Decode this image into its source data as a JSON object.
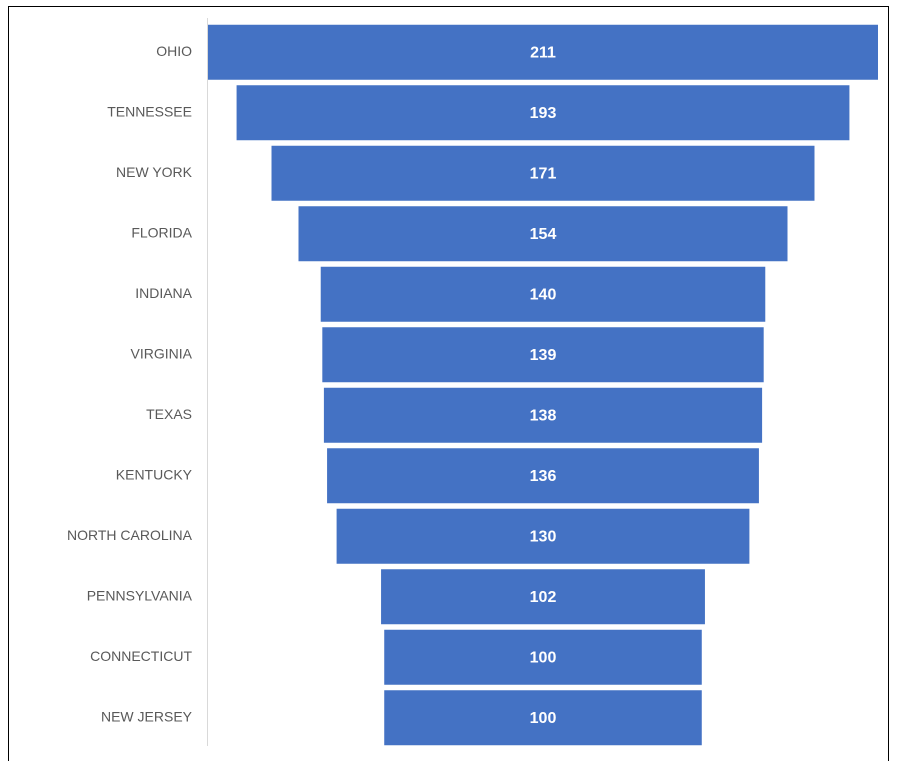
{
  "chart_data": {
    "type": "funnel",
    "categories": [
      "OHIO",
      "TENNESSEE",
      "NEW YORK",
      "FLORIDA",
      "INDIANA",
      "VIRGINIA",
      "TEXAS",
      "KENTUCKY",
      "NORTH CAROLINA",
      "PENNSYLVANIA",
      "CONNECTICUT",
      "NEW JERSEY"
    ],
    "values": [
      211,
      193,
      171,
      154,
      140,
      139,
      138,
      136,
      130,
      102,
      100,
      100
    ],
    "color": "#4472c4"
  }
}
